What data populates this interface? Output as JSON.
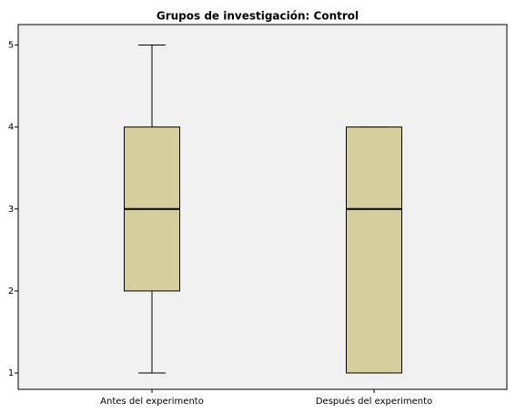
{
  "chart_data": {
    "type": "box",
    "title": "Grupos de investigación: Control",
    "categories": [
      "Antes del experimento",
      "Después del experimento"
    ],
    "boxes": [
      {
        "min": 1,
        "q1": 2,
        "median": 3,
        "q3": 4,
        "max": 5
      },
      {
        "min": 1,
        "q1": 1,
        "median": 3,
        "q3": 4,
        "max": 4
      }
    ],
    "color": "#d4cf9c",
    "ylim": [
      0.8,
      5.25
    ],
    "yticks": [
      1,
      2,
      3,
      4,
      5
    ]
  }
}
